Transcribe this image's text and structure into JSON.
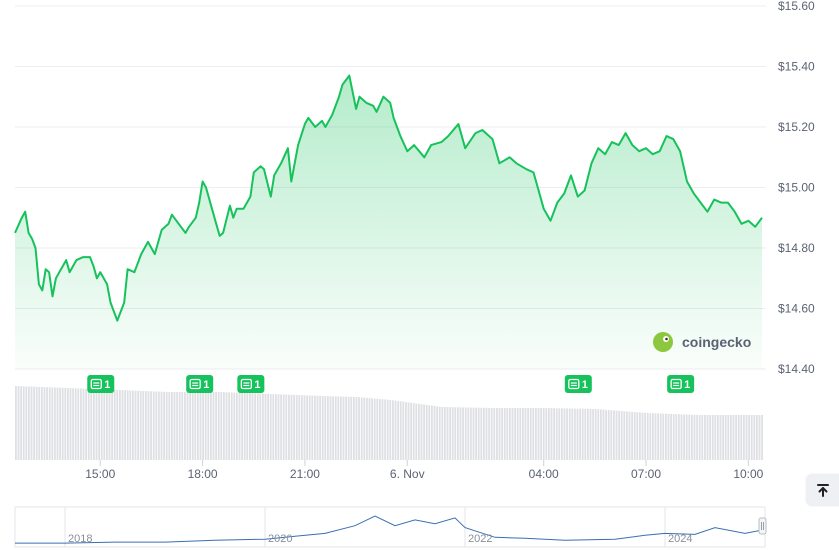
{
  "chart_data": {
    "type": "area",
    "y_ticks": [
      "$15.60",
      "$15.40",
      "$15.20",
      "$15.00",
      "$14.80",
      "$14.60",
      "$14.40"
    ],
    "y_tick_values": [
      15.6,
      15.4,
      15.2,
      15.0,
      14.8,
      14.6,
      14.4
    ],
    "ylim": [
      14.4,
      15.6
    ],
    "x_ticks": [
      "15:00",
      "18:00",
      "21:00",
      "6. Nov",
      "04:00",
      "07:00",
      "10:00"
    ],
    "x_tick_hours": [
      15,
      18,
      21,
      24,
      28,
      31,
      34
    ],
    "xlim_hours": [
      12.5,
      34.4
    ],
    "grid": true,
    "line_color": "#16c25b",
    "series": [
      {
        "hours": [
          12.5,
          12.7,
          12.8,
          12.9,
          13.0,
          13.1,
          13.2,
          13.3,
          13.4,
          13.5,
          13.6,
          13.7,
          13.8,
          14.0,
          14.1,
          14.3,
          14.5,
          14.7,
          14.8,
          14.9,
          15.0,
          15.2,
          15.3,
          15.5,
          15.7,
          15.8,
          16.0,
          16.2,
          16.4,
          16.6,
          16.8,
          17.0,
          17.1,
          17.3,
          17.5,
          17.6,
          17.8,
          17.9,
          18.0,
          18.1,
          18.2,
          18.3,
          18.4,
          18.5,
          18.6,
          18.8,
          18.9,
          19.0,
          19.2,
          19.4,
          19.5,
          19.7,
          19.8,
          20.0,
          20.1,
          20.3,
          20.5,
          20.6,
          20.8,
          21.0,
          21.1,
          21.3,
          21.5,
          21.6,
          21.8,
          22.0,
          22.1,
          22.3,
          22.5,
          22.6,
          22.8,
          23.0,
          23.1,
          23.3,
          23.5,
          23.6,
          23.8,
          24.0,
          24.2,
          24.5,
          24.7,
          25.0,
          25.2,
          25.5,
          25.7,
          26.0,
          26.2,
          26.5,
          26.7,
          27.0,
          27.2,
          27.5,
          27.7,
          28.0,
          28.2,
          28.4,
          28.6,
          28.8,
          29.0,
          29.2,
          29.4,
          29.6,
          29.8,
          30.0,
          30.2,
          30.4,
          30.6,
          30.8,
          31.0,
          31.2,
          31.4,
          31.6,
          31.8,
          32.0,
          32.2,
          32.4,
          32.6,
          32.8,
          33.0,
          33.2,
          33.4,
          33.6,
          33.8,
          34.0,
          34.2,
          34.4
        ],
        "values": [
          14.85,
          14.9,
          14.92,
          14.85,
          14.83,
          14.8,
          14.68,
          14.66,
          14.73,
          14.72,
          14.64,
          14.7,
          14.72,
          14.76,
          14.72,
          14.76,
          14.77,
          14.77,
          14.74,
          14.7,
          14.72,
          14.68,
          14.62,
          14.56,
          14.62,
          14.73,
          14.72,
          14.78,
          14.82,
          14.78,
          14.86,
          14.88,
          14.91,
          14.88,
          14.85,
          14.87,
          14.9,
          14.95,
          15.02,
          15.0,
          14.96,
          14.92,
          14.88,
          14.84,
          14.85,
          14.94,
          14.9,
          14.93,
          14.93,
          14.97,
          15.05,
          15.07,
          15.06,
          14.97,
          15.04,
          15.08,
          15.13,
          15.02,
          15.14,
          15.21,
          15.23,
          15.2,
          15.22,
          15.2,
          15.24,
          15.3,
          15.34,
          15.37,
          15.26,
          15.3,
          15.28,
          15.27,
          15.25,
          15.3,
          15.28,
          15.23,
          15.17,
          15.12,
          15.14,
          15.1,
          15.14,
          15.15,
          15.17,
          15.21,
          15.13,
          15.18,
          15.19,
          15.16,
          15.08,
          15.1,
          15.08,
          15.06,
          15.05,
          14.93,
          14.89,
          14.95,
          14.98,
          15.04,
          14.97,
          14.99,
          15.08,
          15.13,
          15.11,
          15.15,
          15.14,
          15.18,
          15.14,
          15.12,
          15.13,
          15.11,
          15.12,
          15.17,
          15.16,
          15.12,
          15.02,
          14.98,
          14.95,
          14.92,
          14.96,
          14.95,
          14.95,
          14.92,
          14.88,
          14.89,
          14.87,
          14.9
        ]
      }
    ],
    "volume": {
      "color": "#dee0e3",
      "hours": [
        12.5,
        14.0,
        15.5,
        17.0,
        18.5,
        20.0,
        21.5,
        22.5,
        23.5,
        25.0,
        26.5,
        28.0,
        29.5,
        31.0,
        32.5,
        34.4
      ],
      "values": [
        74,
        72,
        70,
        68,
        68,
        66,
        64,
        63,
        60,
        53,
        52,
        52,
        51,
        47,
        45,
        45
      ]
    },
    "events": [
      {
        "hour": 15.0,
        "label": "1"
      },
      {
        "hour": 17.9,
        "label": "1"
      },
      {
        "hour": 19.4,
        "label": "1"
      },
      {
        "hour": 29.0,
        "label": "1"
      },
      {
        "hour": 32.0,
        "label": "1"
      }
    ],
    "navigator": {
      "x_ticks": [
        "2018",
        "2020",
        "2022",
        "2024"
      ],
      "x_tick_years": [
        2018,
        2020,
        2022,
        2024
      ],
      "xlim_years": [
        2017.5,
        2025.0
      ],
      "years": [
        2017.5,
        2018.0,
        2018.5,
        2019.0,
        2019.5,
        2020.0,
        2020.3,
        2020.6,
        2020.9,
        2021.1,
        2021.3,
        2021.5,
        2021.7,
        2021.9,
        2022.0,
        2022.3,
        2022.6,
        2023.0,
        2023.5,
        2023.8,
        2024.0,
        2024.3,
        2024.5,
        2024.8,
        2025.0
      ],
      "values": [
        0.2,
        0.2,
        0.3,
        0.3,
        0.5,
        0.6,
        0.9,
        1.2,
        2.0,
        3.0,
        2.0,
        2.6,
        2.2,
        2.8,
        1.8,
        0.8,
        0.7,
        0.5,
        0.6,
        1.0,
        1.2,
        1.1,
        1.8,
        1.2,
        1.6
      ]
    }
  },
  "watermark": {
    "text": "coingecko"
  }
}
